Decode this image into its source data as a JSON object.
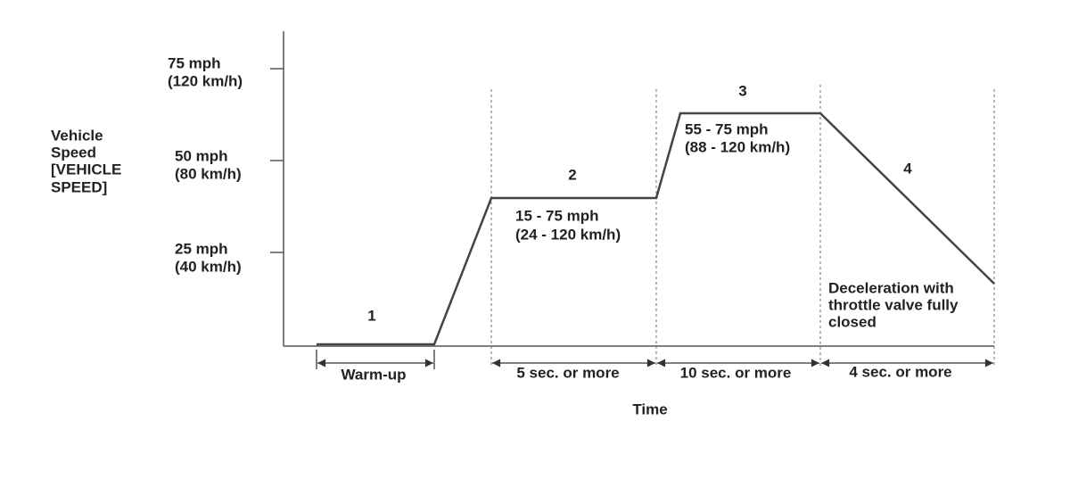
{
  "y_axis": {
    "title": [
      "Vehicle",
      "Speed",
      "[VEHICLE",
      "SPEED]"
    ],
    "ticks": [
      [
        "75 mph",
        "(120 km/h)"
      ],
      [
        "50 mph",
        "(80 km/h)"
      ],
      [
        "25 mph",
        "(40 km/h)"
      ]
    ]
  },
  "stages": [
    {
      "number": "1",
      "note": []
    },
    {
      "number": "2",
      "note": [
        "15 - 75 mph",
        "(24 - 120 km/h)"
      ]
    },
    {
      "number": "3",
      "note": [
        "55 - 75 mph",
        "(88 - 120 km/h)"
      ]
    },
    {
      "number": "4",
      "note": [
        "Deceleration with",
        "throttle valve fully",
        "closed"
      ]
    }
  ],
  "durations": [
    "Warm-up",
    "5 sec. or more",
    "10 sec. or more",
    "4 sec. or more"
  ],
  "x_axis": {
    "title": "Time"
  }
}
